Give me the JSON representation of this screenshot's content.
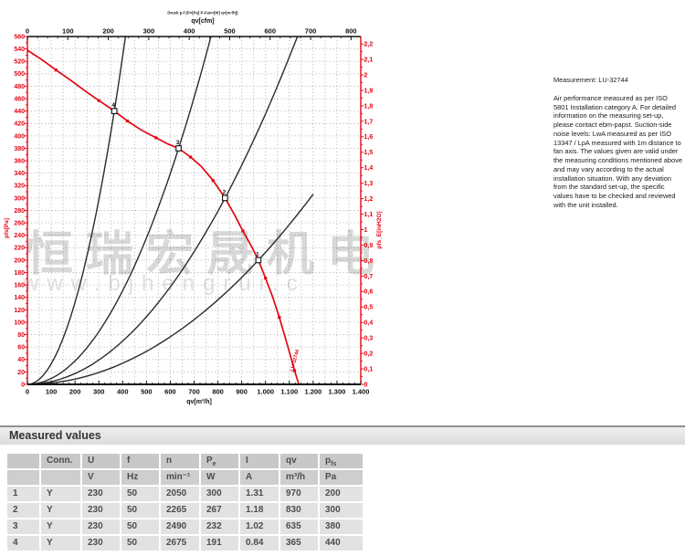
{
  "colors": {
    "accent_red": "#e30613",
    "curve_black": "#2b2b2b",
    "grid": "#b4b4b4"
  },
  "watermark": {
    "text_cn": "恒瑞宏晟机电",
    "text_url": "www.bjhengrui.c"
  },
  "notes": {
    "measurement": "Measurement: LU-32744",
    "body": "Air performance measured as per ISO 5801 Installation category A. For detailed information on the measuring set-up, please contact ebm-papst. Suction-side noise levels: LwA measured as per ISO 13347 / LpA measured with 1m distance to fan axis. The values given are valid under the measuring conditions mentioned above and may vary according to the actual installation situation. With any deviation from the standard set-up, the specific values have to be checked and reviewed with the unit installed."
  },
  "chart_data": {
    "type": "line",
    "title_small": "Druck p-f (P=[Pa] P-Fan=[W] q=[m³/h])",
    "curve_end_label": "LU-32744",
    "x_axis_bottom": {
      "label": "qv[m³/h]",
      "min": 0,
      "max": 1400,
      "tick_step": 100,
      "tick_labels": [
        "0",
        "100",
        "200",
        "300",
        "400",
        "500",
        "600",
        "700",
        "800",
        "900",
        "1.000",
        "1.100",
        "1.200",
        "1.300",
        "1.400"
      ]
    },
    "x_axis_top": {
      "label": "qv[cfm]",
      "min": 0,
      "max": 824,
      "tick_step": 100,
      "tick_labels": [
        "0",
        "100",
        "200",
        "300",
        "400",
        "500",
        "600",
        "700",
        "800"
      ]
    },
    "y_axis_left": {
      "label": "pfs[Pa]",
      "min": 0,
      "max": 560,
      "tick_step": 20
    },
    "y_axis_right": {
      "label": "pfs_E[inH2O]",
      "min": 0,
      "max": 2.2,
      "tick_step": 0.1
    },
    "grid": {
      "x_step": 50,
      "y_step": 20,
      "style": "dotted"
    },
    "fan_curve": {
      "name": "LU-32744",
      "points": [
        [
          0,
          538
        ],
        [
          60,
          523
        ],
        [
          120,
          506
        ],
        [
          180,
          490
        ],
        [
          240,
          473
        ],
        [
          300,
          457
        ],
        [
          365,
          440
        ],
        [
          420,
          424
        ],
        [
          480,
          409
        ],
        [
          540,
          397
        ],
        [
          590,
          387
        ],
        [
          635,
          380
        ],
        [
          685,
          366
        ],
        [
          730,
          351
        ],
        [
          780,
          328
        ],
        [
          830,
          300
        ],
        [
          870,
          273
        ],
        [
          905,
          247
        ],
        [
          940,
          223
        ],
        [
          970,
          200
        ],
        [
          1000,
          171
        ],
        [
          1030,
          141
        ],
        [
          1058,
          108
        ],
        [
          1083,
          75
        ],
        [
          1103,
          48
        ],
        [
          1122,
          22
        ],
        [
          1140,
          0
        ]
      ],
      "marker_qv": [
        120,
        300,
        420,
        540,
        685,
        780,
        905,
        1000,
        1058,
        1122
      ]
    },
    "operating_points": [
      {
        "id": "1",
        "qv": 970,
        "pfs": 200,
        "system_curve_end_qv": 1200
      },
      {
        "id": "2",
        "qv": 830,
        "pfs": 300,
        "system_curve_end_qv": 1134
      },
      {
        "id": "3",
        "qv": 635,
        "pfs": 380,
        "system_curve_end_qv": 771
      },
      {
        "id": "4",
        "qv": 365,
        "pfs": 440,
        "system_curve_end_qv": 412
      }
    ]
  },
  "table": {
    "heading": "Measured values",
    "columns": [
      {
        "head": "",
        "unit": ""
      },
      {
        "head": "Conn.",
        "unit": ""
      },
      {
        "head": "U",
        "unit": "V"
      },
      {
        "head": "f",
        "unit": "Hz"
      },
      {
        "head": "n",
        "unit": "min⁻¹"
      },
      {
        "head": "P",
        "head_sub": "e",
        "unit": "W"
      },
      {
        "head": "I",
        "unit": "A"
      },
      {
        "head": "qv",
        "unit": "m³/h"
      },
      {
        "head": "p",
        "head_sub": "fs",
        "unit": "Pa"
      }
    ],
    "rows": [
      [
        "1",
        "Y",
        "230",
        "50",
        "2050",
        "300",
        "1.31",
        "970",
        "200"
      ],
      [
        "2",
        "Y",
        "230",
        "50",
        "2265",
        "267",
        "1.18",
        "830",
        "300"
      ],
      [
        "3",
        "Y",
        "230",
        "50",
        "2490",
        "232",
        "1.02",
        "635",
        "380"
      ],
      [
        "4",
        "Y",
        "230",
        "50",
        "2675",
        "191",
        "0.84",
        "365",
        "440"
      ]
    ]
  }
}
